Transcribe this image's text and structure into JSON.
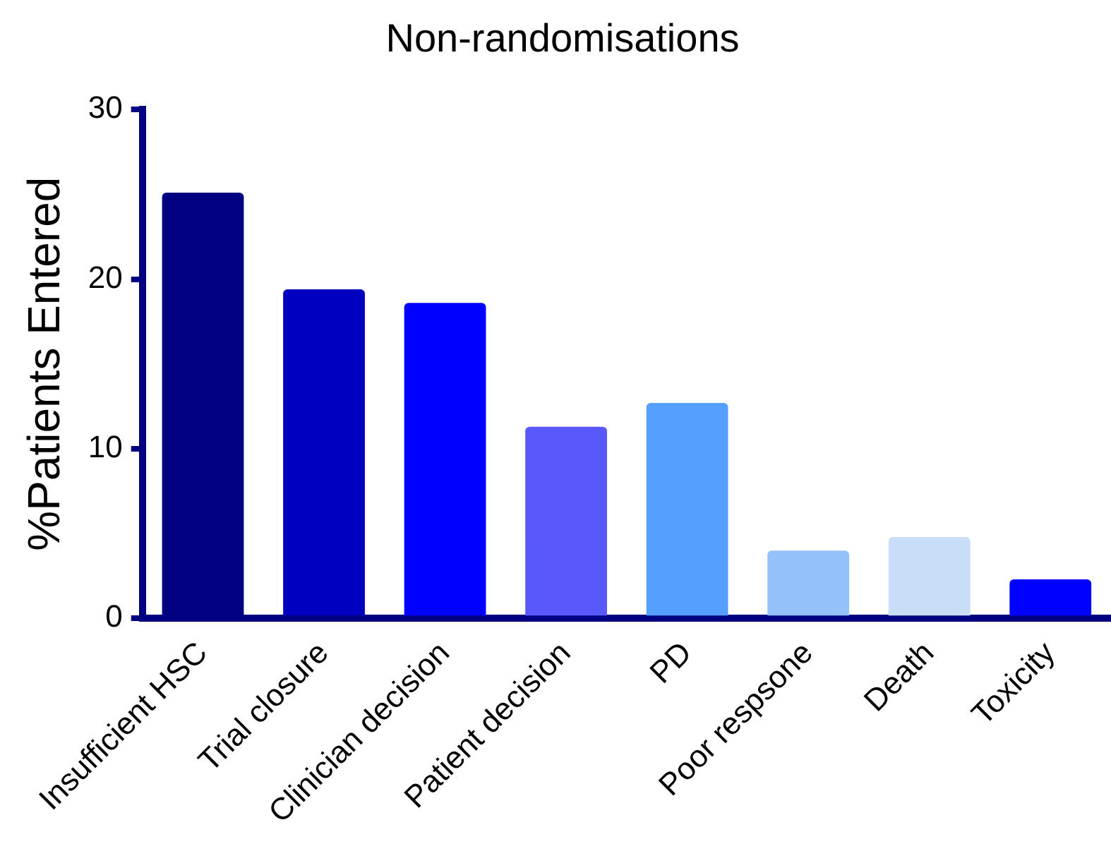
{
  "chart_data": {
    "type": "bar",
    "title": "Non-randomisations",
    "ylabel": "%Patients Entered",
    "categories": [
      "Insufficient HSC",
      "Trial closure",
      "Clinician decision",
      "Patient decision",
      "PD",
      "Poor respsone",
      "Death",
      "Toxicity"
    ],
    "values": [
      25.1,
      19.4,
      18.6,
      11.3,
      12.7,
      4.0,
      4.8,
      2.3
    ],
    "colors": [
      "#000080",
      "#0000c0",
      "#0000ff",
      "#5858fb",
      "#55a0ff",
      "#94c1fa",
      "#c8ddf7",
      "#0000ff"
    ],
    "ylim": [
      0,
      30
    ],
    "yticks": [
      0,
      10,
      20,
      30
    ],
    "grid": false,
    "legend": false
  }
}
